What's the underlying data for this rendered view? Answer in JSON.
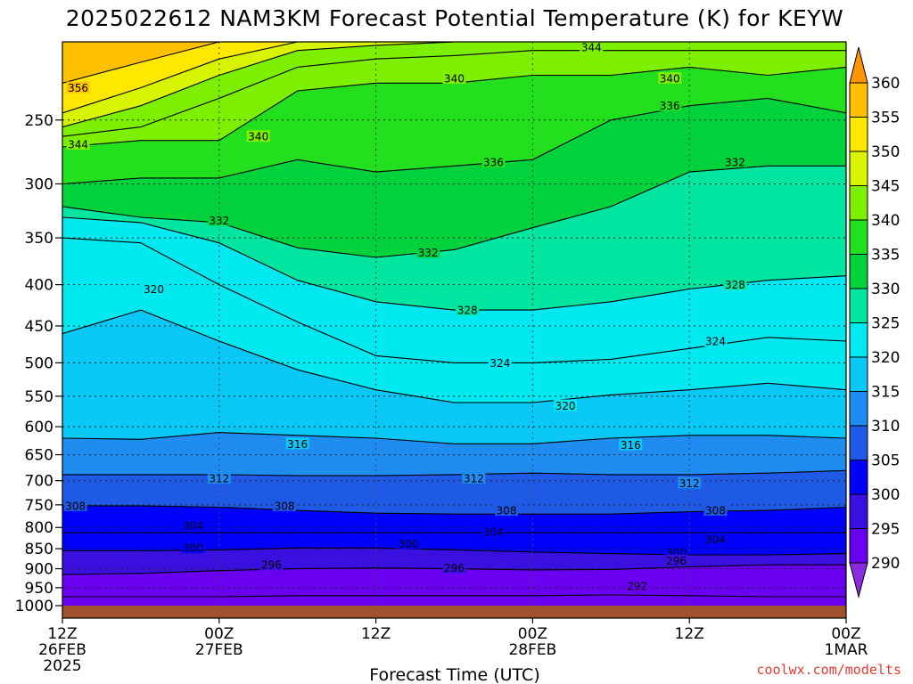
{
  "chart_data": {
    "type": "contour",
    "title": "2025022612 NAM3KM Forecast Potential Temperature (K) for KEYW",
    "xlabel": "Forecast Time (UTC)",
    "ylabel": "",
    "credit": "coolwx.com/modelts",
    "x_range_hours": [
      0,
      60
    ],
    "y_axis": {
      "scale": "log",
      "invert": true,
      "range": [
        1000,
        200
      ]
    },
    "x_ticks": [
      {
        "hour": 0,
        "lines": [
          "12Z",
          "26FEB",
          "2025"
        ]
      },
      {
        "hour": 12,
        "lines": [
          "00Z",
          "27FEB"
        ]
      },
      {
        "hour": 24,
        "lines": [
          "12Z"
        ]
      },
      {
        "hour": 36,
        "lines": [
          "00Z",
          "28FEB"
        ]
      },
      {
        "hour": 48,
        "lines": [
          "12Z"
        ]
      },
      {
        "hour": 60,
        "lines": [
          "00Z",
          "1MAR"
        ]
      }
    ],
    "y_ticks": [
      250,
      300,
      350,
      400,
      450,
      500,
      550,
      600,
      650,
      700,
      750,
      800,
      850,
      900,
      950,
      1000
    ],
    "colorbar": {
      "ticks": [
        290,
        295,
        300,
        305,
        310,
        315,
        320,
        325,
        330,
        335,
        340,
        345,
        350,
        355,
        360
      ],
      "colors": [
        "#8a2be2",
        "#6a00f0",
        "#3a10e0",
        "#0000ff",
        "#1e5ae6",
        "#1e8cf0",
        "#0ac8f5",
        "#00e8f0",
        "#00e6a0",
        "#00d23c",
        "#22e01e",
        "#7cf000",
        "#d8f400",
        "#ffe800",
        "#ffc000",
        "#ff9400"
      ]
    },
    "surface_color": "#a0522d",
    "hours": [
      0,
      6,
      12,
      18,
      24,
      30,
      36,
      42,
      48,
      54,
      60
    ],
    "isentropes": [
      {
        "theta": 292,
        "p": [
          975,
          975,
          975,
          972,
          972,
          972,
          972,
          970,
          972,
          975,
          975
        ]
      },
      {
        "theta": 296,
        "p": [
          915,
          912,
          905,
          900,
          898,
          900,
          903,
          902,
          895,
          890,
          890
        ]
      },
      {
        "theta": 300,
        "p": [
          855,
          855,
          853,
          848,
          848,
          853,
          858,
          862,
          865,
          865,
          862
        ]
      },
      {
        "theta": 304,
        "p": [
          812,
          812,
          812,
          812,
          812,
          812,
          812,
          812,
          812,
          812,
          812
        ]
      },
      {
        "theta": 308,
        "p": [
          752,
          752,
          755,
          762,
          768,
          770,
          770,
          770,
          765,
          762,
          755
        ]
      },
      {
        "theta": 312,
        "p": [
          688,
          688,
          688,
          690,
          690,
          688,
          685,
          688,
          688,
          685,
          680
        ]
      },
      {
        "theta": 316,
        "p": [
          620,
          622,
          610,
          615,
          620,
          630,
          630,
          620,
          615,
          615,
          620
        ]
      },
      {
        "theta": 320,
        "p": [
          460,
          430,
          470,
          510,
          540,
          560,
          560,
          548,
          540,
          530,
          540
        ]
      },
      {
        "theta": 324,
        "p": [
          350,
          355,
          400,
          445,
          490,
          500,
          500,
          495,
          480,
          465,
          470
        ]
      },
      {
        "theta": 328,
        "p": [
          330,
          335,
          355,
          395,
          420,
          430,
          430,
          420,
          405,
          395,
          390
        ]
      },
      {
        "theta": 332,
        "p": [
          320,
          330,
          335,
          360,
          370,
          362,
          340,
          320,
          290,
          285,
          285
        ]
      },
      {
        "theta": 336,
        "p": [
          300,
          295,
          295,
          280,
          290,
          285,
          280,
          250,
          240,
          235,
          245
        ]
      },
      {
        "theta": 340,
        "p": [
          270,
          265,
          265,
          230,
          225,
          225,
          220,
          220,
          215,
          220,
          215
        ]
      },
      {
        "theta": 344,
        "p": [
          262,
          255,
          235,
          215,
          210,
          208,
          205,
          205,
          205,
          205,
          205
        ]
      },
      {
        "theta": 348,
        "p": [
          255,
          240,
          220,
          205,
          202,
          200,
          200,
          200,
          200,
          200,
          200
        ]
      },
      {
        "theta": 352,
        "p": [
          245,
          228,
          210,
          200,
          200,
          200,
          200,
          200,
          200,
          200,
          200
        ]
      },
      {
        "theta": 356,
        "p": [
          225,
          212,
          200,
          200,
          200,
          200,
          200,
          200,
          200,
          200,
          200
        ]
      }
    ],
    "contour_labels": [
      {
        "text": "356",
        "hour": 1.2,
        "p": 228
      },
      {
        "text": "344",
        "hour": 1.2,
        "p": 268
      },
      {
        "text": "340",
        "hour": 15.0,
        "p": 262
      },
      {
        "text": "344",
        "hour": 40.5,
        "p": 203
      },
      {
        "text": "340",
        "hour": 30.0,
        "p": 222
      },
      {
        "text": "340",
        "hour": 46.5,
        "p": 222
      },
      {
        "text": "336",
        "hour": 46.5,
        "p": 240
      },
      {
        "text": "336",
        "hour": 33.0,
        "p": 282
      },
      {
        "text": "332",
        "hour": 51.5,
        "p": 282
      },
      {
        "text": "332",
        "hour": 12.0,
        "p": 333
      },
      {
        "text": "332",
        "hour": 28.0,
        "p": 365
      },
      {
        "text": "328",
        "hour": 31.0,
        "p": 430
      },
      {
        "text": "328",
        "hour": 51.5,
        "p": 400
      },
      {
        "text": "320",
        "hour": 7.0,
        "p": 405
      },
      {
        "text": "324",
        "hour": 33.5,
        "p": 500
      },
      {
        "text": "324",
        "hour": 50.0,
        "p": 470
      },
      {
        "text": "320",
        "hour": 38.5,
        "p": 565
      },
      {
        "text": "316",
        "hour": 18.0,
        "p": 630
      },
      {
        "text": "316",
        "hour": 43.5,
        "p": 632
      },
      {
        "text": "312",
        "hour": 12.0,
        "p": 695
      },
      {
        "text": "312",
        "hour": 31.5,
        "p": 695
      },
      {
        "text": "312",
        "hour": 48.0,
        "p": 705
      },
      {
        "text": "308",
        "hour": 1.0,
        "p": 752
      },
      {
        "text": "308",
        "hour": 17.0,
        "p": 752
      },
      {
        "text": "308",
        "hour": 34.0,
        "p": 762
      },
      {
        "text": "308",
        "hour": 50.0,
        "p": 762
      },
      {
        "text": "304",
        "hour": 10.0,
        "p": 795
      },
      {
        "text": "304",
        "hour": 33.0,
        "p": 810
      },
      {
        "text": "304",
        "hour": 50.0,
        "p": 827
      },
      {
        "text": "300",
        "hour": 10.0,
        "p": 848
      },
      {
        "text": "300",
        "hour": 26.5,
        "p": 838
      },
      {
        "text": "300",
        "hour": 47.0,
        "p": 858
      },
      {
        "text": "296",
        "hour": 16.0,
        "p": 890
      },
      {
        "text": "296",
        "hour": 30.0,
        "p": 898
      },
      {
        "text": "296",
        "hour": 47.0,
        "p": 880
      },
      {
        "text": "292",
        "hour": 44.0,
        "p": 945
      }
    ]
  }
}
